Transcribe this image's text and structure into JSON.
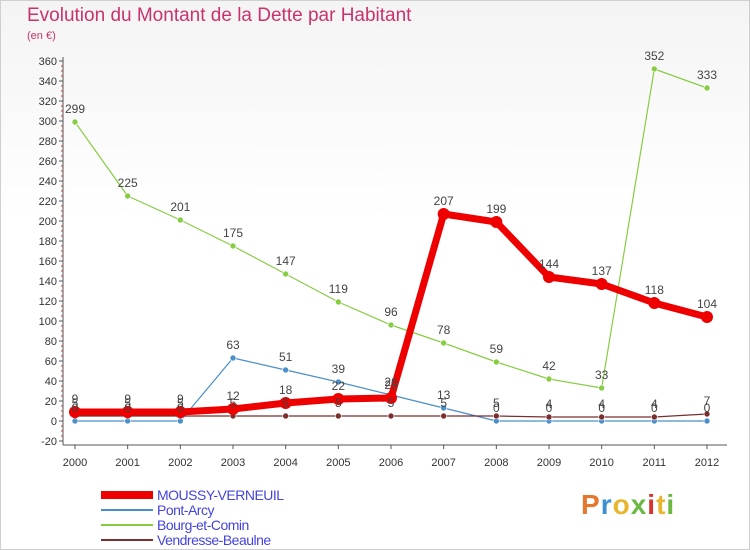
{
  "header": {
    "title": "Evolution du Montant de la Dette par Habitant",
    "unit": "(en €)"
  },
  "brand": {
    "text": "Proxiti",
    "colors": [
      "#e8772e",
      "#3c8fd0",
      "#e8b62e",
      "#6bb843",
      "#d8332f",
      "#e8b62e",
      "#6bb843"
    ]
  },
  "chart_data": {
    "type": "line",
    "title": "Evolution du Montant de la Dette par Habitant",
    "ylabel": "(en €)",
    "xlabel": "",
    "x": [
      "2000",
      "2001",
      "2002",
      "2003",
      "2004",
      "2005",
      "2006",
      "2007",
      "2008",
      "2009",
      "2010",
      "2011",
      "2012"
    ],
    "ylim": [
      -20,
      360
    ],
    "yticks": [
      -20,
      0,
      20,
      40,
      60,
      80,
      100,
      120,
      140,
      160,
      180,
      200,
      220,
      240,
      260,
      280,
      300,
      320,
      340,
      360
    ],
    "grid": false,
    "legend": "bottom-left",
    "series": [
      {
        "name": "MOUSSY-VERNEUIL",
        "color": "#ee0000",
        "values": [
          9,
          9,
          9,
          12,
          18,
          22,
          23,
          207,
          199,
          144,
          137,
          118,
          104
        ],
        "labels": [
          "9",
          "9",
          "9",
          "12",
          "18",
          "22",
          "23",
          "207",
          "199",
          "144",
          "137",
          "118",
          "104"
        ]
      },
      {
        "name": "Pont-Arcy",
        "color": "#4a8fc9",
        "values": [
          0,
          0,
          0,
          63,
          51,
          39,
          26,
          13,
          0,
          0,
          0,
          0,
          0
        ],
        "labels": [
          "0",
          "0",
          "0",
          "63",
          "51",
          "39",
          "26",
          "13",
          "0",
          "0",
          "0",
          "0",
          "0"
        ]
      },
      {
        "name": "Bourg-et-Comin",
        "color": "#88cc44",
        "values": [
          299,
          225,
          201,
          175,
          147,
          119,
          96,
          78,
          59,
          42,
          33,
          352,
          333
        ],
        "labels": [
          "299",
          "225",
          "201",
          "175",
          "147",
          "119",
          "96",
          "78",
          "59",
          "42",
          "33",
          "352",
          "333"
        ]
      },
      {
        "name": "Vendresse-Beaulne",
        "color": "#7a2e2e",
        "values": [
          5,
          5,
          5,
          5,
          5,
          5,
          5,
          5,
          5,
          4,
          4,
          4,
          7
        ],
        "labels": [
          "5",
          "5",
          "5",
          "5",
          "5",
          "5",
          "5",
          "5",
          "5",
          "4",
          "4",
          "4",
          "7"
        ]
      }
    ]
  }
}
